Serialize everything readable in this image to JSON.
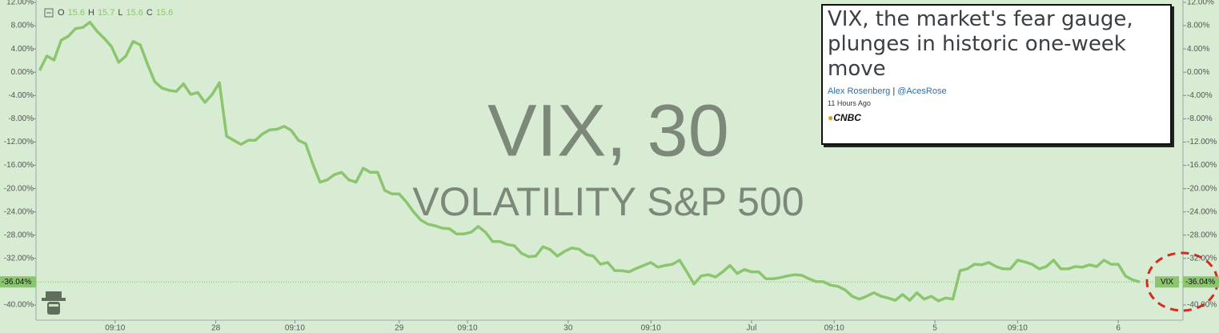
{
  "chart_data": {
    "type": "line",
    "color": "#8cc56f",
    "ylim": [
      -41.7,
      12.4
    ],
    "yticks": [
      {
        "value": 12,
        "label": "12.00%"
      },
      {
        "value": 8,
        "label": "8.00%"
      },
      {
        "value": 4,
        "label": "4.00%"
      },
      {
        "value": 0,
        "label": "0.00%"
      },
      {
        "value": -4,
        "label": "-4.00%"
      },
      {
        "value": -8,
        "label": "-8.00%"
      },
      {
        "value": -12,
        "label": "-12.00%"
      },
      {
        "value": -16,
        "label": "-16.00%"
      },
      {
        "value": -20,
        "label": "-20.00%"
      },
      {
        "value": -24,
        "label": "-24.00%"
      },
      {
        "value": -28,
        "label": "-28.00%"
      },
      {
        "value": -32,
        "label": "-32.00%"
      },
      {
        "value": -40,
        "label": "-40.00%"
      }
    ],
    "xlim": [
      -0.5,
      159
    ],
    "xticks": [
      {
        "value": 10.5,
        "label": "09:10"
      },
      {
        "value": 24.5,
        "label": "28"
      },
      {
        "value": 35.5,
        "label": "09:10"
      },
      {
        "value": 50,
        "label": "29"
      },
      {
        "value": 59.5,
        "label": "09:10"
      },
      {
        "value": 73.5,
        "label": "30"
      },
      {
        "value": 85,
        "label": "09:10"
      },
      {
        "value": 99,
        "label": "Jul"
      },
      {
        "value": 110.5,
        "label": "09:10"
      },
      {
        "value": 124.5,
        "label": "5"
      },
      {
        "value": 136,
        "label": "09:10"
      },
      {
        "value": 150,
        "label": "6"
      }
    ],
    "values": [
      0.3,
      2.8,
      2.1,
      5.5,
      6.2,
      7.5,
      7.7,
      8.6,
      7.0,
      5.8,
      4.4,
      1.7,
      2.8,
      5.3,
      4.7,
      1.4,
      -1.6,
      -2.7,
      -3.1,
      -3.3,
      -2.0,
      -3.8,
      -3.5,
      -5.2,
      -3.8,
      -1.8,
      -11.0,
      -11.7,
      -12.4,
      -11.7,
      -11.7,
      -10.6,
      -9.9,
      -9.8,
      -9.3,
      -10.0,
      -11.7,
      -12.3,
      -15.8,
      -18.9,
      -18.5,
      -17.6,
      -17.2,
      -18.5,
      -18.9,
      -16.5,
      -17.2,
      -17.2,
      -20.3,
      -20.9,
      -20.9,
      -22.3,
      -24.0,
      -25.4,
      -26.1,
      -26.4,
      -26.8,
      -26.9,
      -27.8,
      -27.8,
      -27.5,
      -26.5,
      -27.5,
      -29.1,
      -29.1,
      -29.6,
      -29.8,
      -31.1,
      -31.7,
      -31.6,
      -30.0,
      -30.5,
      -31.6,
      -30.8,
      -30.2,
      -30.4,
      -31.3,
      -31.6,
      -33.0,
      -32.7,
      -34.1,
      -34.1,
      -34.3,
      -33.7,
      -33.2,
      -32.7,
      -33.5,
      -33.2,
      -33.0,
      -32.3,
      -34.3,
      -36.4,
      -35.0,
      -34.8,
      -35.2,
      -34.3,
      -33.2,
      -34.6,
      -33.9,
      -34.3,
      -34.3,
      -35.5,
      -35.5,
      -35.3,
      -35.0,
      -34.8,
      -34.9,
      -35.5,
      -36.0,
      -36.0,
      -36.6,
      -36.8,
      -37.4,
      -38.5,
      -39.0,
      -38.5,
      -37.9,
      -38.5,
      -38.8,
      -39.2,
      -38.2,
      -39.2,
      -37.9,
      -39.0,
      -38.5,
      -39.3,
      -38.8,
      -39.0,
      -34.1,
      -33.8,
      -33.0,
      -33.1,
      -32.7,
      -33.4,
      -33.8,
      -33.8,
      -32.3,
      -32.6,
      -33.0,
      -33.8,
      -33.4,
      -32.3,
      -33.8,
      -33.8,
      -33.4,
      -33.5,
      -33.1,
      -33.4,
      -32.3,
      -33.0,
      -33.0,
      -35.0,
      -35.7,
      -36.04
    ],
    "current": {
      "value": -36.04,
      "label": "-36.04%"
    },
    "symbol": "VIX",
    "ohlc": [
      "O",
      "15.6",
      "H",
      "15.7",
      "L",
      "15.6",
      "C",
      "15.6"
    ],
    "watermark": "VIX, 30",
    "watermark_subtitle": "VOLATILITY S&P 500"
  },
  "news": {
    "headline_lines": [
      "VIX, the market's fear gauge,",
      "plunges in historic one-week",
      "move"
    ],
    "author": "Alex Rosenberg",
    "separator": "|",
    "handle": "@AcesRose",
    "time": "11 Hours Ago",
    "source": "CNBC"
  }
}
